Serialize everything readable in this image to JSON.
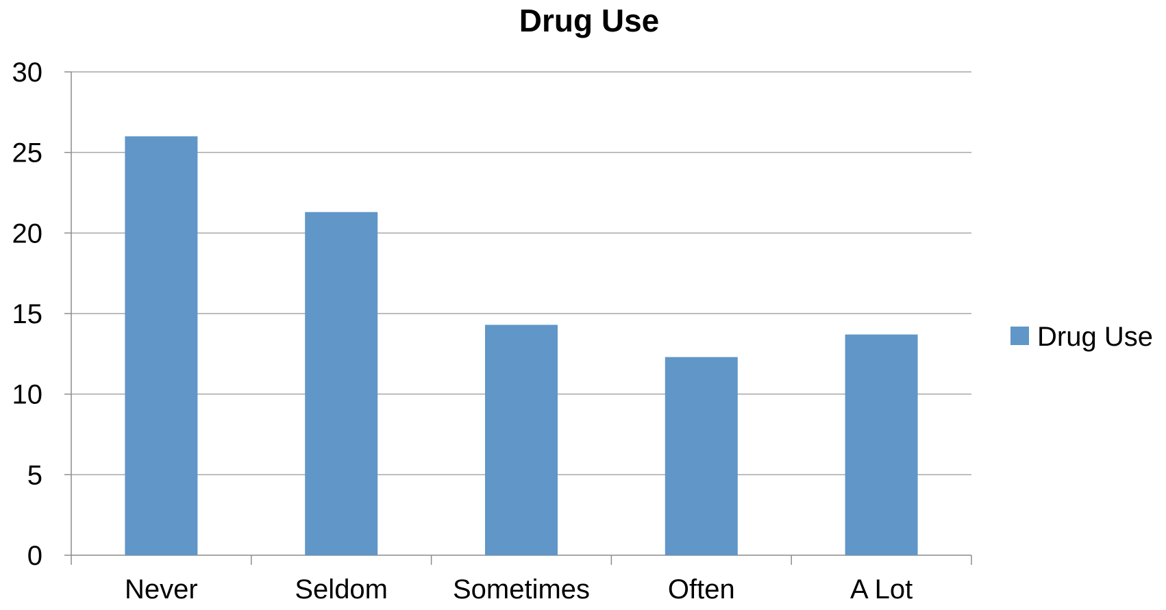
{
  "chart_data": {
    "type": "bar",
    "title": "Drug Use",
    "xlabel": "",
    "ylabel": "",
    "categories": [
      "Never",
      "Seldom",
      "Sometimes",
      "Often",
      "A Lot"
    ],
    "series": [
      {
        "name": "Drug Use",
        "values": [
          26,
          21.3,
          14.3,
          12.3,
          13.7
        ],
        "color": "#6096c8"
      }
    ],
    "ylim": [
      0,
      30
    ],
    "yticks": [
      0,
      5,
      10,
      15,
      20,
      25,
      30
    ],
    "ytick_labels": [
      "0",
      "5",
      "10",
      "15",
      "20",
      "25",
      "30"
    ],
    "grid": true,
    "legend": {
      "position": "right",
      "entries": [
        "Drug Use"
      ]
    },
    "colors": {
      "bar": "#6096c8",
      "grid": "#a6a6a6",
      "axis": "#8c8c8c",
      "text": "#000000"
    }
  }
}
